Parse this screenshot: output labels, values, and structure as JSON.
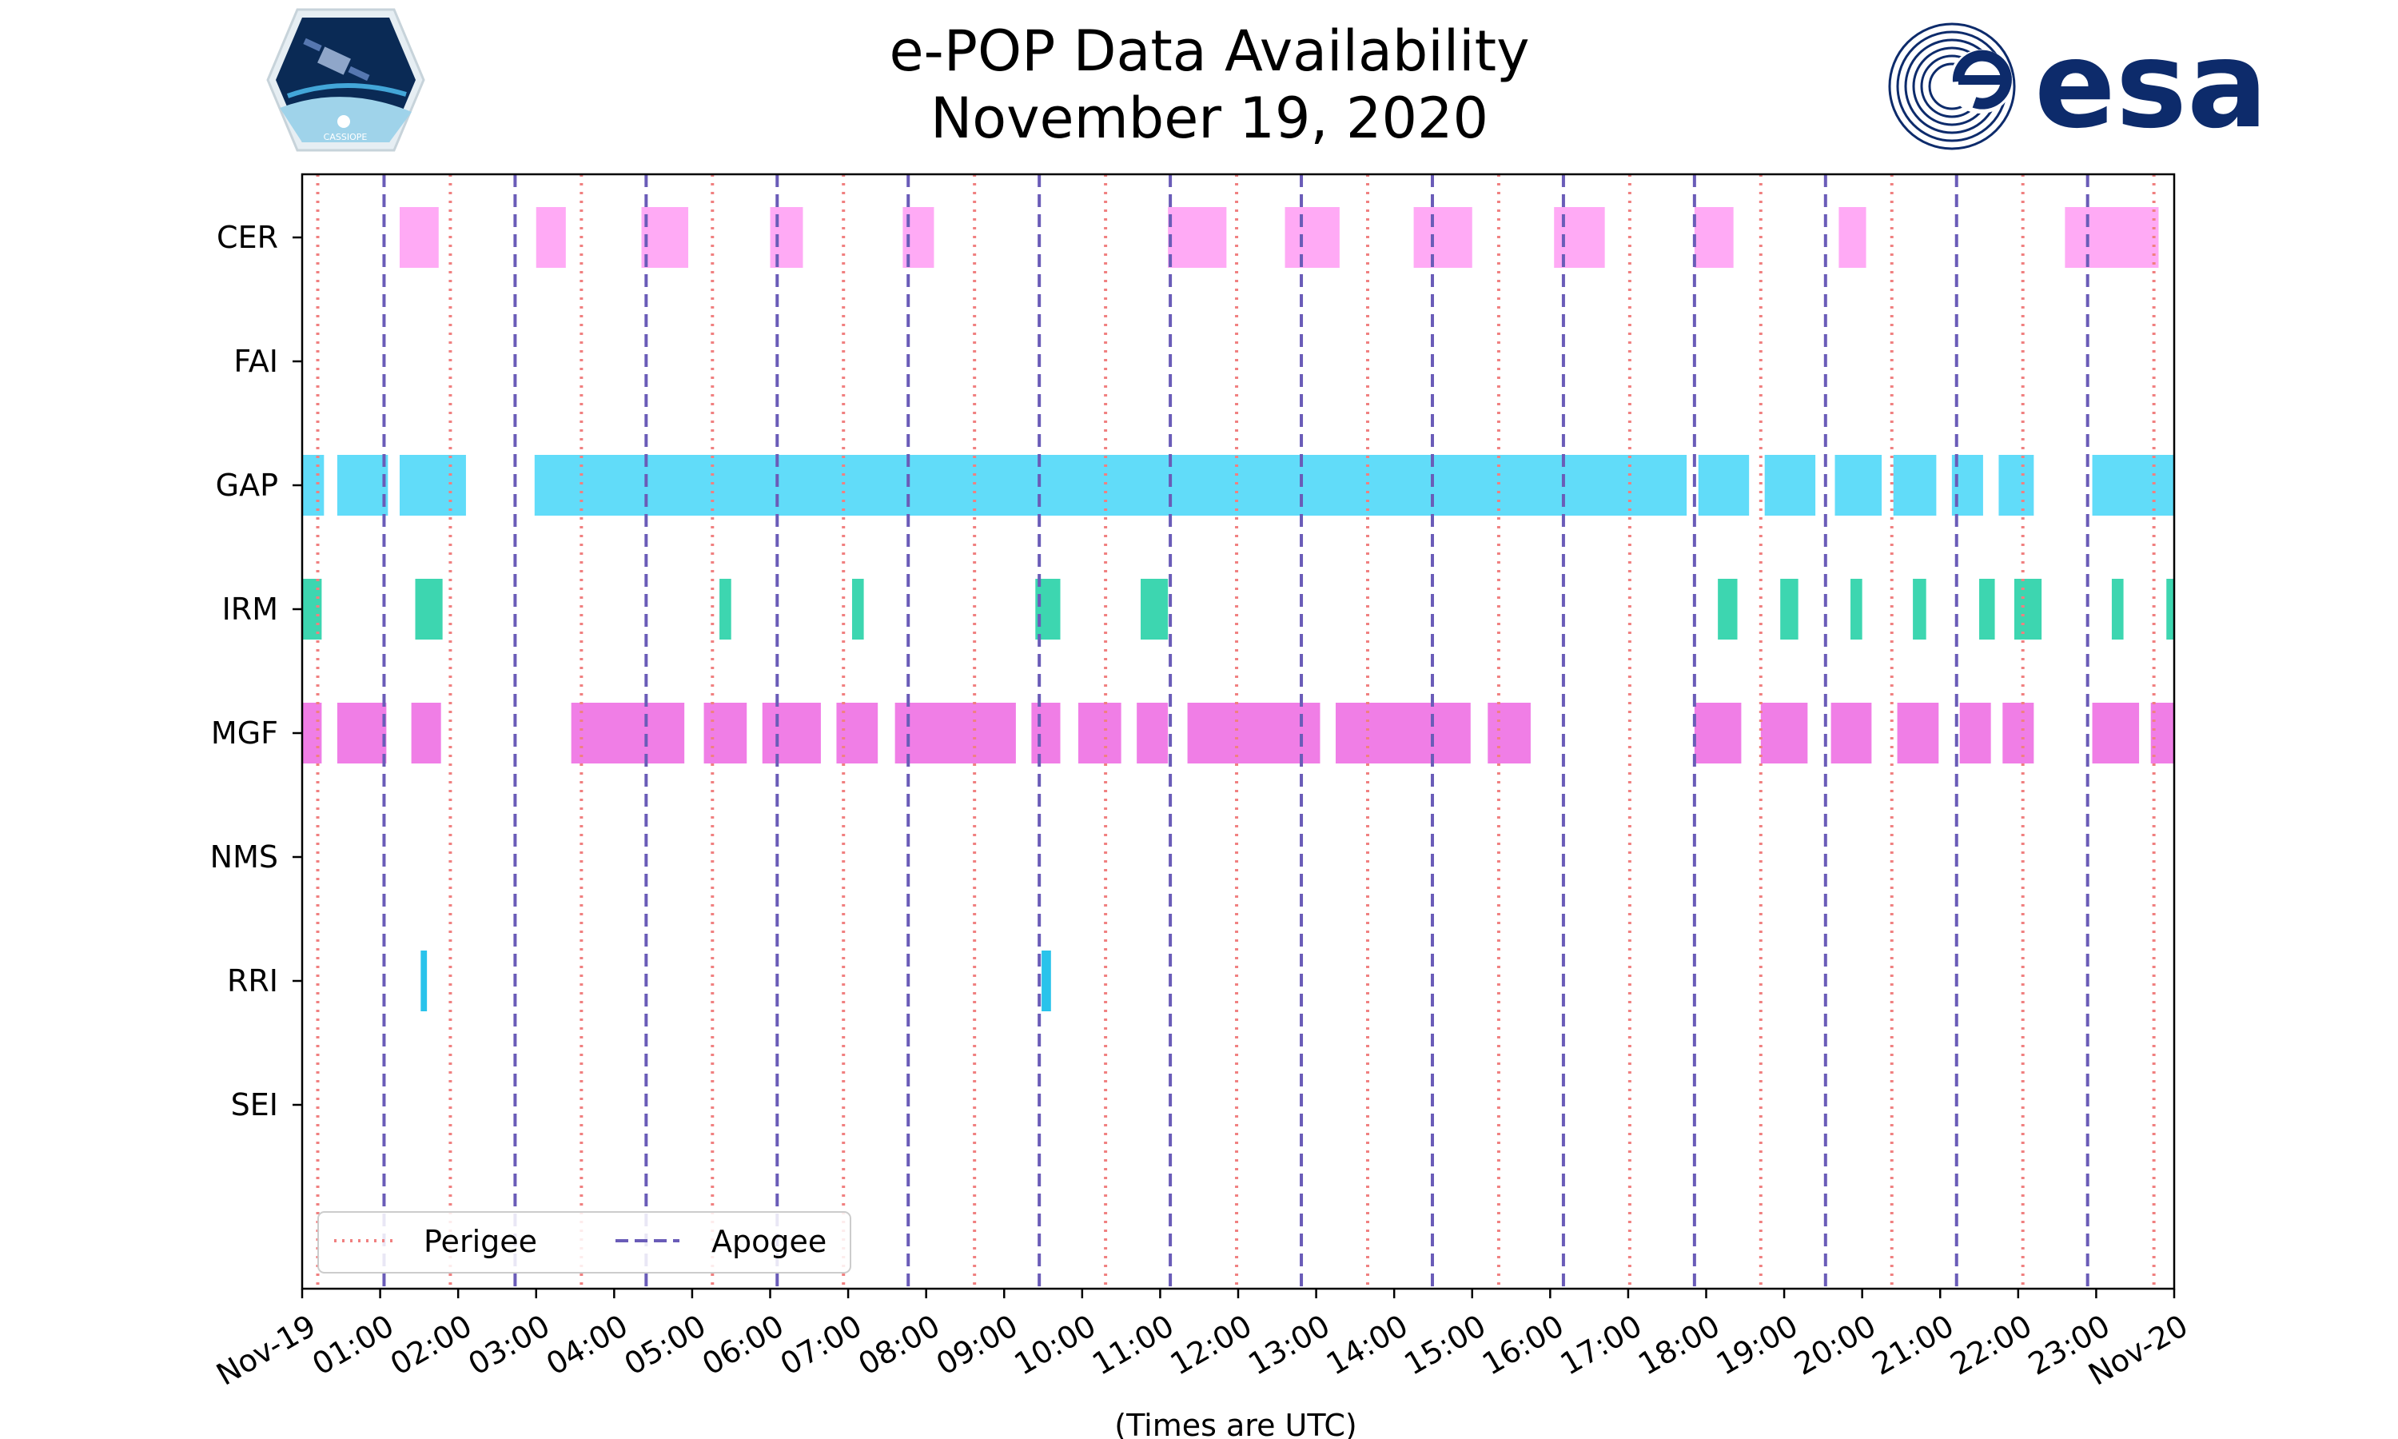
{
  "chart_data": {
    "type": "timeline",
    "title": "e-POP Data Availability",
    "subtitle": "November 19, 2020",
    "xlabel": "(Times are UTC)",
    "x_unit": "hours",
    "xlim": [
      0,
      24
    ],
    "x_ticks": [
      {
        "value": 0,
        "label": "Nov-19"
      },
      {
        "value": 1,
        "label": "01:00"
      },
      {
        "value": 2,
        "label": "02:00"
      },
      {
        "value": 3,
        "label": "03:00"
      },
      {
        "value": 4,
        "label": "04:00"
      },
      {
        "value": 5,
        "label": "05:00"
      },
      {
        "value": 6,
        "label": "06:00"
      },
      {
        "value": 7,
        "label": "07:00"
      },
      {
        "value": 8,
        "label": "08:00"
      },
      {
        "value": 9,
        "label": "09:00"
      },
      {
        "value": 10,
        "label": "10:00"
      },
      {
        "value": 11,
        "label": "11:00"
      },
      {
        "value": 12,
        "label": "12:00"
      },
      {
        "value": 13,
        "label": "13:00"
      },
      {
        "value": 14,
        "label": "14:00"
      },
      {
        "value": 15,
        "label": "15:00"
      },
      {
        "value": 16,
        "label": "16:00"
      },
      {
        "value": 17,
        "label": "17:00"
      },
      {
        "value": 18,
        "label": "18:00"
      },
      {
        "value": 19,
        "label": "19:00"
      },
      {
        "value": 20,
        "label": "20:00"
      },
      {
        "value": 21,
        "label": "21:00"
      },
      {
        "value": 22,
        "label": "22:00"
      },
      {
        "value": 23,
        "label": "23:00"
      },
      {
        "value": 24,
        "label": "Nov-20"
      }
    ],
    "instruments": [
      {
        "name": "CER",
        "color": "#ffaaf5",
        "segments": [
          [
            1.25,
            1.75
          ],
          [
            3.0,
            3.38
          ],
          [
            4.35,
            4.95
          ],
          [
            6.0,
            6.42
          ],
          [
            7.7,
            8.1
          ],
          [
            11.1,
            11.85
          ],
          [
            12.6,
            13.3
          ],
          [
            14.25,
            15.0
          ],
          [
            16.05,
            16.7
          ],
          [
            17.85,
            18.35
          ],
          [
            19.7,
            20.05
          ],
          [
            22.6,
            23.8
          ]
        ]
      },
      {
        "name": "FAI",
        "color": "#ffffff",
        "segments": []
      },
      {
        "name": "GAP",
        "color": "#61dcf9",
        "segments": [
          [
            0.0,
            0.28
          ],
          [
            0.45,
            1.1
          ],
          [
            1.25,
            2.1
          ],
          [
            2.98,
            17.75
          ],
          [
            17.9,
            18.55
          ],
          [
            18.75,
            19.4
          ],
          [
            19.65,
            20.25
          ],
          [
            20.4,
            20.95
          ],
          [
            21.15,
            21.55
          ],
          [
            21.75,
            22.2
          ],
          [
            22.95,
            24.0
          ]
        ]
      },
      {
        "name": "IRM",
        "color": "#3dd6b0",
        "segments": [
          [
            0.0,
            0.25
          ],
          [
            1.45,
            1.8
          ],
          [
            5.35,
            5.5
          ],
          [
            7.05,
            7.2
          ],
          [
            9.4,
            9.72
          ],
          [
            10.75,
            11.1
          ],
          [
            18.15,
            18.4
          ],
          [
            18.95,
            19.18
          ],
          [
            19.85,
            20.0
          ],
          [
            20.65,
            20.82
          ],
          [
            21.5,
            21.7
          ],
          [
            21.95,
            22.3
          ],
          [
            23.2,
            23.35
          ],
          [
            23.9,
            24.0
          ]
        ]
      },
      {
        "name": "MGF",
        "color": "#f07ee6",
        "segments": [
          [
            0.0,
            0.25
          ],
          [
            0.45,
            1.08
          ],
          [
            1.4,
            1.78
          ],
          [
            3.45,
            4.9
          ],
          [
            5.15,
            5.7
          ],
          [
            5.9,
            6.65
          ],
          [
            6.85,
            7.38
          ],
          [
            7.6,
            9.15
          ],
          [
            9.35,
            9.72
          ],
          [
            9.95,
            10.5
          ],
          [
            10.7,
            11.1
          ],
          [
            11.35,
            13.05
          ],
          [
            13.25,
            14.98
          ],
          [
            15.2,
            15.75
          ],
          [
            17.85,
            18.45
          ],
          [
            18.7,
            19.3
          ],
          [
            19.6,
            20.12
          ],
          [
            20.45,
            20.98
          ],
          [
            21.25,
            21.65
          ],
          [
            21.8,
            22.2
          ],
          [
            22.95,
            23.55
          ],
          [
            23.7,
            24.0
          ]
        ]
      },
      {
        "name": "NMS",
        "color": "#ffffff",
        "segments": []
      },
      {
        "name": "RRI",
        "color": "#29c3eb",
        "segments": [
          [
            1.52,
            1.6
          ],
          [
            9.48,
            9.6
          ]
        ]
      },
      {
        "name": "SEI",
        "color": "#ffffff",
        "segments": []
      }
    ],
    "perigee_times": [
      0.2,
      1.9,
      3.58,
      5.26,
      6.94,
      8.62,
      10.3,
      11.98,
      13.66,
      15.34,
      17.02,
      18.7,
      20.38,
      22.06,
      23.74
    ],
    "apogee_times": [
      1.05,
      2.73,
      4.41,
      6.09,
      7.77,
      9.45,
      11.13,
      12.81,
      14.49,
      16.17,
      17.85,
      19.53,
      21.21,
      22.89
    ],
    "legend": {
      "placement": "bottom-left",
      "entries": [
        {
          "label": "Perigee",
          "color": "#f08080",
          "style": "dotted"
        },
        {
          "label": "Apogee",
          "color": "#6a5cb8",
          "style": "dashed"
        }
      ]
    }
  },
  "logos": {
    "left": {
      "name": "CASSIOPE",
      "text": "CASSIOPE"
    },
    "right": {
      "name": "esa",
      "text": "esa"
    }
  }
}
